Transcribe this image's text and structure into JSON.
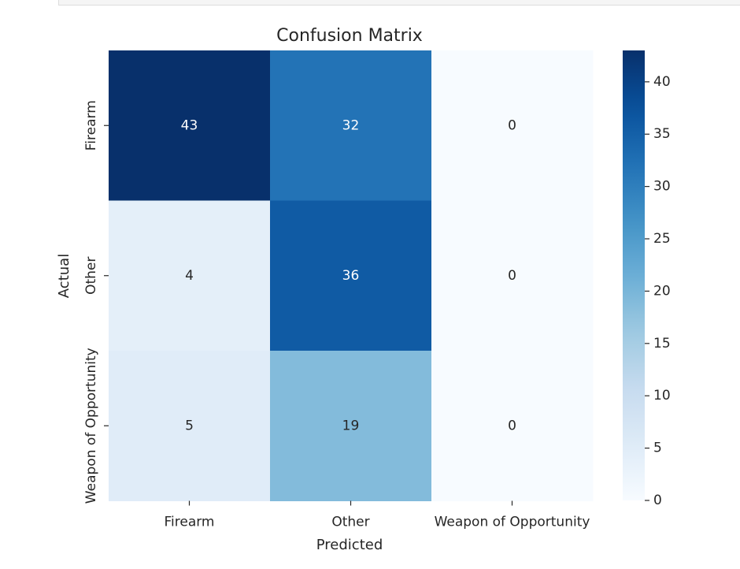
{
  "chart_data": {
    "type": "heatmap",
    "title": "Confusion Matrix",
    "xlabel": "Predicted",
    "ylabel": "Actual",
    "x_categories": [
      "Firearm",
      "Other",
      "Weapon of Opportunity"
    ],
    "y_categories": [
      "Firearm",
      "Other",
      "Weapon of Opportunity"
    ],
    "values": [
      [
        43,
        32,
        0
      ],
      [
        4,
        36,
        0
      ],
      [
        5,
        19,
        0
      ]
    ],
    "colormap": "Blues",
    "color_min": "#f7fbff",
    "color_max": "#08306b",
    "vmin": 0,
    "vmax": 43,
    "colorbar_ticks": [
      0,
      5,
      10,
      15,
      20,
      25,
      30,
      35,
      40
    ],
    "annotations": true,
    "grid": false
  }
}
